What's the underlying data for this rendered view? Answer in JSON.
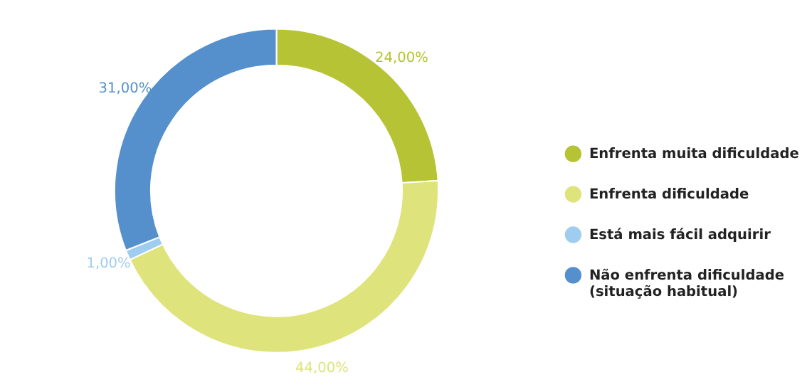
{
  "chart_data": {
    "type": "donut",
    "categories": [
      "Enfrenta muita dificuldade",
      "Enfrenta dificuldade",
      "Está mais fácil adquirir",
      "Não enfrenta dificuldade (situação habitual)"
    ],
    "values": [
      24,
      44,
      1,
      31
    ],
    "colors": [
      "#b5c334",
      "#dfe37c",
      "#9fcdf0",
      "#5590cc"
    ],
    "value_labels": [
      "24,00%",
      "44,00%",
      "1,00%",
      "31,00%"
    ],
    "legend": "right"
  }
}
